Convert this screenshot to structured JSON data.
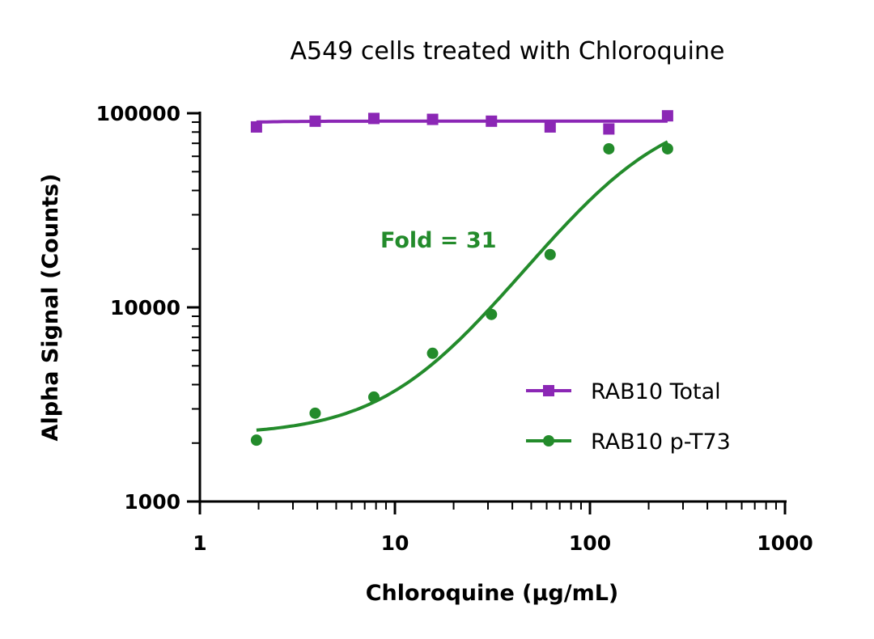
{
  "chart_data": {
    "type": "scatter",
    "title": "A549 cells treated with Chloroquine",
    "xlabel": "Chloroquine (µg/mL)",
    "ylabel": "Alpha Signal (Counts)",
    "xscale": "log",
    "yscale": "log",
    "xlim": [
      1,
      1000
    ],
    "ylim": [
      1000,
      100000
    ],
    "xticks": [
      "1",
      "10",
      "100",
      "1000"
    ],
    "yticks": [
      "1000",
      "10000",
      "100000"
    ],
    "grid": false,
    "legend": "bottom-right",
    "annotation": "Fold = 31",
    "series": [
      {
        "name": "RAB10 Total",
        "color": "#8B27B5",
        "marker": "square",
        "x": [
          1.95,
          3.9,
          7.8,
          15.6,
          31.25,
          62.5,
          125,
          250
        ],
        "y": [
          85000,
          91000,
          94000,
          93000,
          91000,
          85000,
          83000,
          97000
        ],
        "fit": {
          "model": "4PL",
          "bottom": 88000,
          "top": 91000,
          "ec50": 1.5,
          "hill": 3
        }
      },
      {
        "name": "RAB10 p-T73",
        "color": "#238B2B",
        "marker": "circle",
        "x": [
          1.95,
          3.9,
          7.8,
          15.6,
          31.25,
          62.5,
          125,
          250
        ],
        "y": [
          2070,
          2850,
          3450,
          5800,
          9200,
          18700,
          65600,
          65600
        ],
        "fit": {
          "model": "4PL",
          "bottom": 2200,
          "top": 110000,
          "ec50": 170,
          "hill": 1.5
        }
      }
    ]
  }
}
